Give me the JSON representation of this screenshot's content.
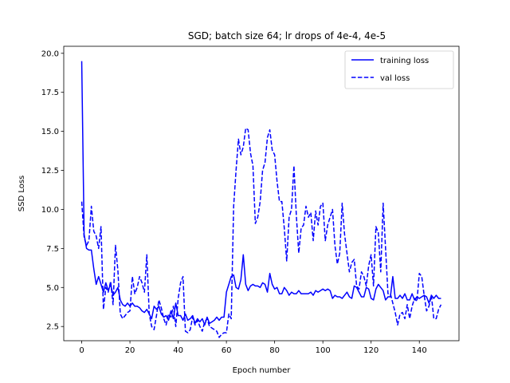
{
  "chart_data": {
    "type": "line",
    "title": "SGD; batch size 64; lr drops of 4e-4, 4e-5",
    "xlabel": "Epoch number",
    "ylabel": "SSD Loss",
    "xlim": [
      -7.45,
      156.45
    ],
    "ylim": [
      1.59,
      20.45
    ],
    "xticks": [
      0,
      20,
      40,
      60,
      80,
      100,
      120,
      140
    ],
    "xtick_labels": [
      "0",
      "20",
      "40",
      "60",
      "80",
      "100",
      "120",
      "140"
    ],
    "yticks": [
      2.5,
      5.0,
      7.5,
      10.0,
      12.5,
      15.0,
      17.5,
      20.0
    ],
    "ytick_labels": [
      "2.5",
      "5.0",
      "7.5",
      "10.0",
      "12.5",
      "15.0",
      "17.5",
      "20.0"
    ],
    "grid": false,
    "legend_position": "top-right",
    "colors": {
      "series": "#0000ff",
      "axes": "#000000"
    },
    "x": [
      0,
      1,
      2,
      3,
      4,
      5,
      6,
      7,
      8,
      9,
      10,
      11,
      12,
      13,
      14,
      15,
      16,
      17,
      18,
      19,
      20,
      21,
      22,
      23,
      24,
      25,
      26,
      27,
      28,
      29,
      30,
      31,
      32,
      33,
      34,
      35,
      36,
      37,
      38,
      39,
      40,
      41,
      42,
      43,
      44,
      45,
      46,
      47,
      48,
      49,
      50,
      51,
      52,
      53,
      54,
      55,
      56,
      57,
      58,
      59,
      60,
      61,
      62,
      63,
      64,
      65,
      66,
      67,
      68,
      69,
      70,
      71,
      72,
      73,
      74,
      75,
      76,
      77,
      78,
      79,
      80,
      81,
      82,
      83,
      84,
      85,
      86,
      87,
      88,
      89,
      90,
      91,
      92,
      93,
      94,
      95,
      96,
      97,
      98,
      99,
      100,
      101,
      102,
      103,
      104,
      105,
      106,
      107,
      108,
      109,
      110,
      111,
      112,
      113,
      114,
      115,
      116,
      117,
      118,
      119,
      120,
      121,
      122,
      123,
      124,
      125,
      126,
      127,
      128,
      129,
      130,
      131,
      132,
      133,
      134,
      135,
      136,
      137,
      138,
      139,
      140,
      141,
      142,
      143,
      144,
      145,
      146,
      147,
      148,
      149
    ],
    "series": [
      {
        "name": "training loss",
        "line_style": "solid",
        "values": [
          19.5,
          8.4,
          7.5,
          7.4,
          7.4,
          6.2,
          5.2,
          5.7,
          5.2,
          4.7,
          5.3,
          4.8,
          5.2,
          4.5,
          4.7,
          5.0,
          4.2,
          3.9,
          3.8,
          4.0,
          3.8,
          4.0,
          3.8,
          3.8,
          3.7,
          3.5,
          3.4,
          3.6,
          3.3,
          3.0,
          3.8,
          3.6,
          3.8,
          3.3,
          3.1,
          3.2,
          2.9,
          3.5,
          3.0,
          4.0,
          3.2,
          3.2,
          2.9,
          3.3,
          2.9,
          3.0,
          3.2,
          2.7,
          3.0,
          2.8,
          3.0,
          2.6,
          3.1,
          2.7,
          2.8,
          2.9,
          3.1,
          2.9,
          3.1,
          3.1,
          4.7,
          5.2,
          5.7,
          5.8,
          5.0,
          4.9,
          5.5,
          7.1,
          5.2,
          4.8,
          5.1,
          5.2,
          5.1,
          5.1,
          5.0,
          5.3,
          5.2,
          4.7,
          5.9,
          5.2,
          4.9,
          5.0,
          4.6,
          4.6,
          5.0,
          4.8,
          4.5,
          4.7,
          4.6,
          4.6,
          4.8,
          4.6,
          4.6,
          4.6,
          4.6,
          4.7,
          4.5,
          4.8,
          4.7,
          4.8,
          4.9,
          4.8,
          4.9,
          4.8,
          4.3,
          4.5,
          4.4,
          4.4,
          4.3,
          4.5,
          4.7,
          4.4,
          4.3,
          5.1,
          5.0,
          4.7,
          4.4,
          4.4,
          5.0,
          4.9,
          4.3,
          4.2,
          4.9,
          5.2,
          5.0,
          4.8,
          4.2,
          4.4,
          4.4,
          5.7,
          4.3,
          4.3,
          4.5,
          4.3,
          4.6,
          4.2,
          4.2,
          4.6,
          4.2,
          4.4,
          4.3,
          4.4,
          4.5,
          4.4,
          4.0,
          4.5,
          4.3,
          4.5,
          4.3,
          4.3
        ]
      },
      {
        "name": "val loss",
        "line_style": "dashed",
        "values": [
          10.5,
          8.2,
          7.7,
          8.0,
          10.2,
          8.6,
          8.3,
          7.5,
          8.9,
          3.6,
          5.0,
          4.7,
          5.4,
          3.9,
          7.7,
          6.1,
          3.3,
          3.0,
          3.2,
          3.4,
          3.5,
          5.7,
          4.6,
          5.0,
          5.7,
          5.3,
          4.7,
          7.1,
          3.3,
          2.5,
          2.3,
          3.2,
          4.2,
          3.7,
          3.0,
          2.6,
          3.3,
          3.1,
          3.8,
          2.5,
          4.3,
          5.3,
          5.7,
          2.2,
          2.1,
          2.3,
          3.1,
          2.6,
          2.9,
          2.5,
          2.2,
          2.8,
          3.0,
          2.5,
          2.4,
          2.3,
          2.2,
          1.8,
          2.0,
          2.1,
          2.1,
          3.3,
          3.0,
          10.2,
          12.5,
          14.5,
          13.5,
          14.0,
          15.2,
          15.1,
          13.6,
          12.8,
          9.1,
          9.5,
          10.5,
          12.5,
          13.0,
          14.6,
          15.1,
          13.8,
          13.5,
          11.8,
          10.5,
          10.5,
          8.8,
          6.7,
          9.5,
          10.0,
          12.8,
          9.6,
          7.2,
          8.8,
          9.0,
          10.2,
          9.5,
          9.8,
          8.0,
          9.9,
          9.0,
          10.2,
          10.4,
          8.0,
          9.0,
          9.5,
          10.0,
          7.7,
          6.5,
          7.2,
          10.4,
          8.4,
          7.2,
          6.0,
          6.6,
          6.8,
          5.1,
          4.9,
          6.0,
          5.7,
          5.1,
          6.4,
          7.1,
          5.1,
          8.9,
          8.5,
          6.0,
          10.4,
          7.5,
          4.6,
          4.6,
          4.0,
          3.4,
          2.6,
          3.3,
          3.4,
          3.0,
          3.9,
          3.0,
          3.8,
          4.3,
          4.1,
          5.9,
          5.7,
          4.5,
          3.5,
          3.8,
          4.5,
          3.0,
          3.0,
          3.6,
          3.9
        ]
      }
    ]
  }
}
